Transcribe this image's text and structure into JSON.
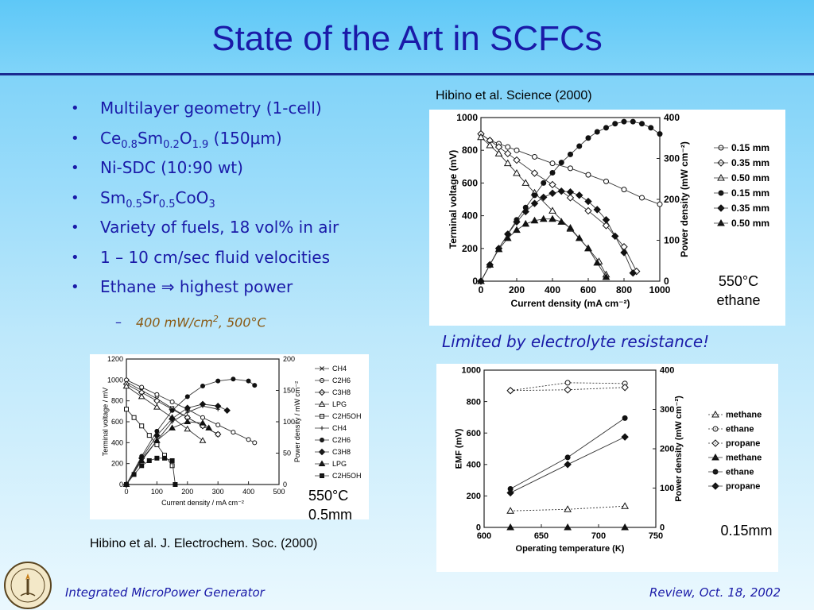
{
  "slide": {
    "title": "State of the Art in SCFCs",
    "bullets": [
      {
        "parts": [
          {
            "t": "Multilayer geometry (1-cell)"
          }
        ]
      },
      {
        "parts": [
          {
            "t": "Ce"
          },
          {
            "sub": "0.8"
          },
          {
            "t": "Sm"
          },
          {
            "sub": "0.2"
          },
          {
            "t": "O"
          },
          {
            "sub": "1.9"
          },
          {
            "t": " (150μm)"
          }
        ]
      },
      {
        "parts": [
          {
            "t": "Ni-SDC (10:90 wt)"
          }
        ]
      },
      {
        "parts": [
          {
            "t": "Sm"
          },
          {
            "sub": "0.5"
          },
          {
            "t": "Sr"
          },
          {
            "sub": "0.5"
          },
          {
            "t": "CoO"
          },
          {
            "sub": "3"
          }
        ]
      },
      {
        "parts": [
          {
            "t": "Variety of fuels, 18 vol% in air"
          }
        ]
      },
      {
        "parts": [
          {
            "t": "1 – 10 cm/sec fluid velocities"
          }
        ]
      },
      {
        "parts": [
          {
            "t": "Ethane ⇒ highest power"
          }
        ]
      }
    ],
    "sub_bullet": {
      "dash": "–",
      "parts": [
        {
          "t": "400 mW/cm"
        },
        {
          "sup": "2"
        },
        {
          "t": ", 500°C"
        }
      ]
    },
    "caption_top": "Hibino et al. Science (2000)",
    "caption_bottom": "Hibino et al. J. Electrochem. Soc. (2000)",
    "note_top_line1": "550°C",
    "note_top_line2": "ethane",
    "note_left_line1": "550°C",
    "note_left_line2": "0.5mm",
    "note_right": "0.15mm",
    "limited_text": "Limited by electrolyte resistance!",
    "footer_left": "Integrated MicroPower Generator",
    "footer_right": "Review, Oct. 18, 2002",
    "colors": {
      "title": "#1a1aa8",
      "rule": "#1b2a90",
      "sub_bullet": "#8a5a14"
    },
    "seal_icon": "caltech-seal-icon"
  },
  "chart_data": [
    {
      "id": "top",
      "type": "line",
      "xlabel": "Current density (mA cm⁻²)",
      "ylabel": "Terminal voltage (mV)",
      "y2label": "Power density (mW cm⁻²)",
      "xlim": [
        0,
        1000
      ],
      "ylim": [
        0,
        1000
      ],
      "y2lim": [
        0,
        400
      ],
      "xticks": [
        0,
        200,
        400,
        600,
        800,
        1000
      ],
      "yticks": [
        0,
        200,
        400,
        600,
        800,
        1000
      ],
      "y2ticks": [
        0,
        100,
        200,
        300,
        400
      ],
      "legend": "right",
      "series": [
        {
          "name": "0.15 mm",
          "axis": "y",
          "marker": "circle-open",
          "x": [
            0,
            50,
            100,
            150,
            200,
            300,
            400,
            500,
            600,
            700,
            800,
            900,
            1000
          ],
          "y": [
            900,
            860,
            840,
            820,
            800,
            760,
            720,
            690,
            650,
            610,
            560,
            510,
            470
          ]
        },
        {
          "name": "0.35 mm",
          "axis": "y",
          "marker": "diamond-open",
          "x": [
            0,
            50,
            100,
            150,
            200,
            300,
            400,
            500,
            600,
            700,
            800,
            870
          ],
          "y": [
            900,
            860,
            820,
            780,
            740,
            660,
            590,
            510,
            430,
            340,
            210,
            60
          ]
        },
        {
          "name": "0.50 mm",
          "axis": "y",
          "marker": "triangle-open",
          "x": [
            0,
            50,
            100,
            150,
            200,
            250,
            300,
            400,
            500,
            600,
            660,
            700
          ],
          "y": [
            880,
            830,
            780,
            720,
            660,
            600,
            540,
            430,
            320,
            200,
            120,
            40
          ]
        },
        {
          "name": "0.15 mm",
          "axis": "y2",
          "marker": "circle-filled",
          "x": [
            0,
            50,
            100,
            150,
            200,
            250,
            300,
            350,
            400,
            450,
            500,
            550,
            600,
            650,
            700,
            750,
            800,
            850,
            900,
            950,
            1000
          ],
          "y": [
            0,
            40,
            80,
            115,
            150,
            180,
            210,
            240,
            265,
            290,
            310,
            330,
            350,
            365,
            375,
            385,
            390,
            390,
            385,
            375,
            360
          ]
        },
        {
          "name": "0.35 mm",
          "axis": "y2",
          "marker": "diamond-filled",
          "x": [
            0,
            50,
            100,
            150,
            200,
            250,
            300,
            350,
            400,
            450,
            500,
            550,
            600,
            650,
            700,
            750,
            800,
            850
          ],
          "y": [
            0,
            40,
            80,
            115,
            145,
            170,
            190,
            205,
            215,
            220,
            218,
            210,
            195,
            175,
            150,
            110,
            70,
            20
          ]
        },
        {
          "name": "0.50 mm",
          "axis": "y2",
          "marker": "triangle-filled",
          "x": [
            0,
            50,
            100,
            150,
            200,
            250,
            300,
            350,
            400,
            450,
            500,
            550,
            600,
            650,
            700
          ],
          "y": [
            0,
            40,
            78,
            105,
            125,
            140,
            148,
            152,
            152,
            145,
            130,
            105,
            80,
            45,
            10
          ]
        }
      ]
    },
    {
      "id": "left",
      "type": "line",
      "xlabel": "Current density / mA cm⁻²",
      "ylabel": "Terminal voltage / mV",
      "y2label": "Power density / mW cm⁻²",
      "xlim": [
        0,
        500
      ],
      "ylim": [
        0,
        1200
      ],
      "y2lim": [
        0,
        200
      ],
      "xticks": [
        0,
        100,
        200,
        300,
        400,
        500
      ],
      "yticks": [
        0,
        200,
        400,
        600,
        800,
        1000,
        1200
      ],
      "y2ticks": [
        0,
        50,
        100,
        150,
        200
      ],
      "legend": "right",
      "series": [
        {
          "name": "CH4",
          "axis": "y",
          "marker": "x",
          "x": [
            0,
            50,
            100,
            150,
            200,
            250,
            300
          ],
          "y": [
            980,
            900,
            820,
            730,
            640,
            560,
            480
          ]
        },
        {
          "name": "C2H6",
          "axis": "y",
          "marker": "circle-open",
          "x": [
            0,
            50,
            100,
            150,
            200,
            250,
            300,
            350,
            400,
            420
          ],
          "y": [
            1000,
            930,
            860,
            790,
            720,
            640,
            570,
            500,
            430,
            400
          ]
        },
        {
          "name": "C3H8",
          "axis": "y",
          "marker": "diamond-open",
          "x": [
            0,
            50,
            100,
            150,
            200,
            250,
            300
          ],
          "y": [
            960,
            880,
            800,
            720,
            640,
            560,
            480
          ]
        },
        {
          "name": "LPG",
          "axis": "y",
          "marker": "triangle-open",
          "x": [
            0,
            50,
            100,
            150,
            200,
            250
          ],
          "y": [
            940,
            840,
            740,
            640,
            530,
            420
          ]
        },
        {
          "name": "C2H5OH",
          "axis": "y",
          "marker": "square-open",
          "x": [
            0,
            25,
            50,
            75,
            100,
            125,
            150
          ],
          "y": [
            720,
            640,
            560,
            470,
            380,
            280,
            180
          ]
        },
        {
          "name": "CH4",
          "axis": "y2",
          "marker": "plus",
          "x": [
            0,
            50,
            100,
            150,
            200,
            250,
            300
          ],
          "y": [
            0,
            40,
            70,
            100,
            115,
            125,
            120
          ]
        },
        {
          "name": "C2H6",
          "axis": "y2",
          "marker": "circle-filled",
          "x": [
            0,
            50,
            100,
            150,
            200,
            250,
            300,
            350,
            400,
            420
          ],
          "y": [
            0,
            45,
            85,
            118,
            140,
            157,
            165,
            168,
            165,
            158
          ]
        },
        {
          "name": "C3H8",
          "axis": "y2",
          "marker": "diamond-filled",
          "x": [
            0,
            50,
            100,
            150,
            200,
            250,
            300,
            330
          ],
          "y": [
            0,
            42,
            78,
            105,
            122,
            128,
            125,
            118
          ]
        },
        {
          "name": "LPG",
          "axis": "y2",
          "marker": "triangle-filled",
          "x": [
            0,
            50,
            100,
            150,
            200,
            250,
            270
          ],
          "y": [
            0,
            38,
            70,
            90,
            100,
            98,
            90
          ]
        },
        {
          "name": "C2H5OH",
          "axis": "y2",
          "marker": "square-filled",
          "x": [
            0,
            25,
            50,
            75,
            100,
            125,
            150,
            160
          ],
          "y": [
            0,
            16,
            30,
            38,
            42,
            42,
            38,
            0
          ]
        }
      ]
    },
    {
      "id": "right",
      "type": "line",
      "xlabel": "Operating temperature (K)",
      "ylabel": "EMF (mV)",
      "y2label": "Power density (mW cm⁻²)",
      "xlim": [
        600,
        750
      ],
      "ylim": [
        0,
        1000
      ],
      "y2lim": [
        0,
        400
      ],
      "xticks": [
        600,
        650,
        700,
        750
      ],
      "yticks": [
        0,
        200,
        400,
        600,
        800,
        1000
      ],
      "y2ticks": [
        0,
        100,
        200,
        300,
        400
      ],
      "legend": "right",
      "series": [
        {
          "name": "methane",
          "axis": "y2",
          "marker": "triangle-open",
          "x": [
            623,
            673,
            723
          ],
          "y": [
            42,
            46,
            54
          ]
        },
        {
          "name": "ethane",
          "axis": "y",
          "marker": "circle-open",
          "x": [
            623,
            673,
            723
          ],
          "y": [
            870,
            920,
            915
          ]
        },
        {
          "name": "propane",
          "axis": "y",
          "marker": "diamond-open",
          "x": [
            623,
            673,
            723
          ],
          "y": [
            870,
            875,
            890
          ]
        },
        {
          "name": "methane",
          "axis": "y2",
          "marker": "triangle-filled",
          "x": [
            623,
            673,
            723
          ],
          "y": [
            0,
            0,
            0
          ]
        },
        {
          "name": "ethane",
          "axis": "y2",
          "marker": "circle-filled",
          "x": [
            623,
            673,
            723
          ],
          "y": [
            98,
            178,
            278
          ]
        },
        {
          "name": "propane",
          "axis": "y2",
          "marker": "diamond-filled",
          "x": [
            623,
            673,
            723
          ],
          "y": [
            88,
            160,
            230
          ]
        }
      ]
    }
  ]
}
